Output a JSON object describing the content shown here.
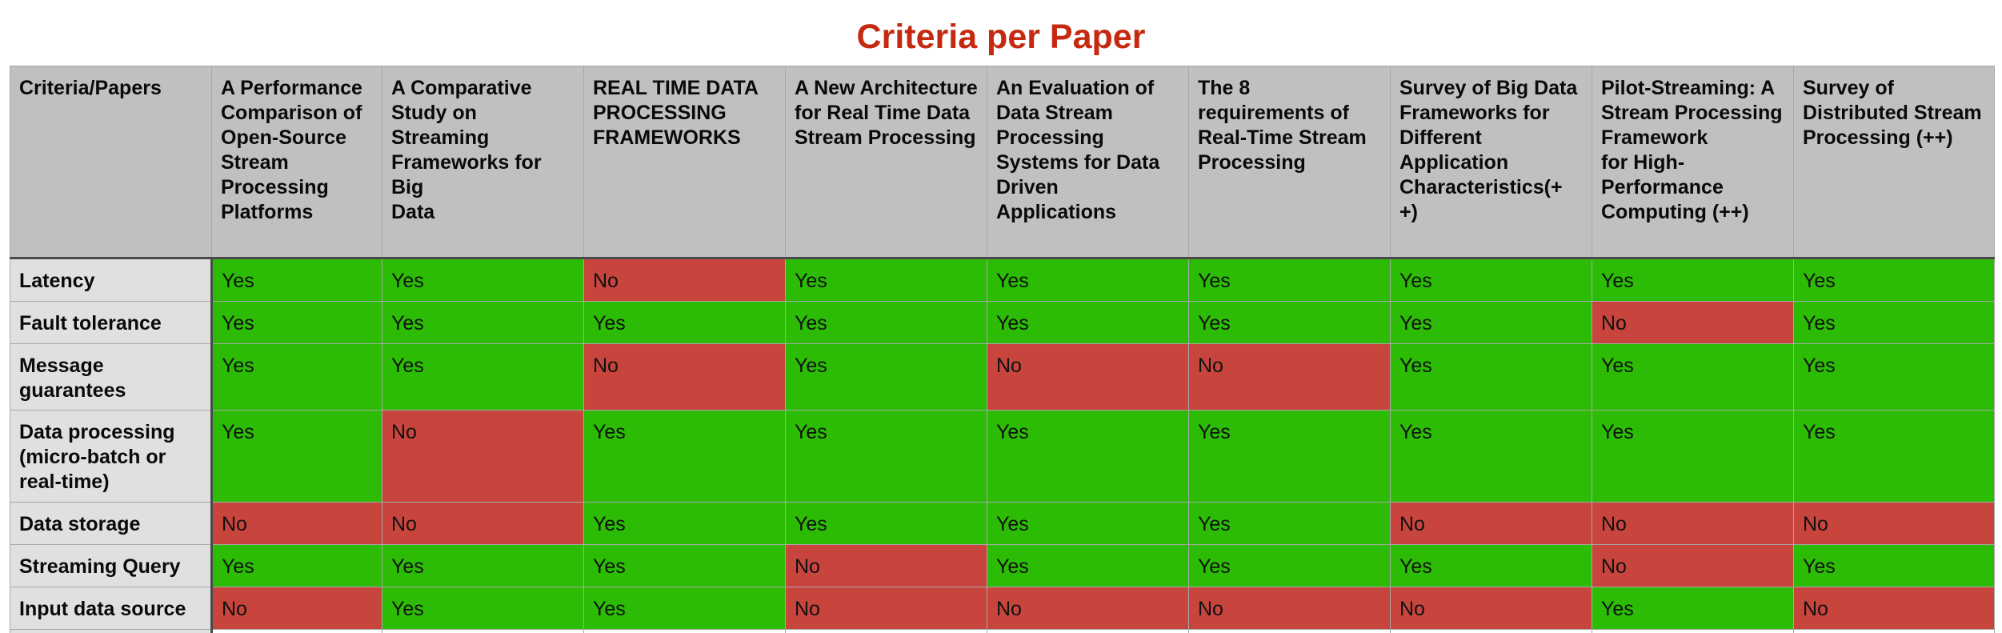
{
  "title": "Criteria per Paper",
  "colors": {
    "title": "#c5290f",
    "yes": "#2cbc05",
    "no": "#c8453d",
    "header_bg": "#bfc0bf",
    "row_header_bg": "#e0e0e0"
  },
  "table": {
    "corner": "Criteria/Papers",
    "papers": [
      "A Performance Comparison of Open-Source Stream Processing Platforms",
      "A Comparative Study on Streaming Frameworks for Big\nData",
      "REAL TIME DATA PROCESSING FRAMEWORKS",
      "A New Architecture for Real Time Data Stream Processing",
      "An Evaluation of Data Stream Processing Systems for Data Driven Applications",
      "The 8 requirements of Real-Time Stream Processing",
      "Survey of Big Data Frameworks for Different Application Characteristics(+\n+)",
      "Pilot-Streaming: A Stream Processing Framework\nfor High-Performance Computing (++)",
      "Survey of Distributed Stream Processing (++)"
    ],
    "rows": [
      {
        "criterion": "Latency",
        "values": [
          "Yes",
          "Yes",
          "No",
          "Yes",
          "Yes",
          "Yes",
          "Yes",
          "Yes",
          "Yes"
        ]
      },
      {
        "criterion": "Fault tolerance",
        "values": [
          "Yes",
          "Yes",
          "Yes",
          "Yes",
          "Yes",
          "Yes",
          "Yes",
          "No",
          "Yes"
        ]
      },
      {
        "criterion": "Message guarantees",
        "values": [
          "Yes",
          "Yes",
          "No",
          "Yes",
          "No",
          "No",
          "Yes",
          "Yes",
          "Yes"
        ]
      },
      {
        "criterion": "Data processing (micro-batch or real-time)",
        "values": [
          "Yes",
          "No",
          "Yes",
          "Yes",
          "Yes",
          "Yes",
          "Yes",
          "Yes",
          "Yes"
        ]
      },
      {
        "criterion": "Data storage",
        "values": [
          "No",
          "No",
          "Yes",
          "Yes",
          "Yes",
          "Yes",
          "No",
          "No",
          "No"
        ]
      },
      {
        "criterion": "Streaming Query",
        "values": [
          "Yes",
          "Yes",
          "Yes",
          "No",
          "Yes",
          "Yes",
          "Yes",
          "No",
          "Yes"
        ]
      },
      {
        "criterion": "Input data source",
        "values": [
          "No",
          "Yes",
          "Yes",
          "No",
          "No",
          "No",
          "No",
          "Yes",
          "No"
        ]
      }
    ]
  }
}
